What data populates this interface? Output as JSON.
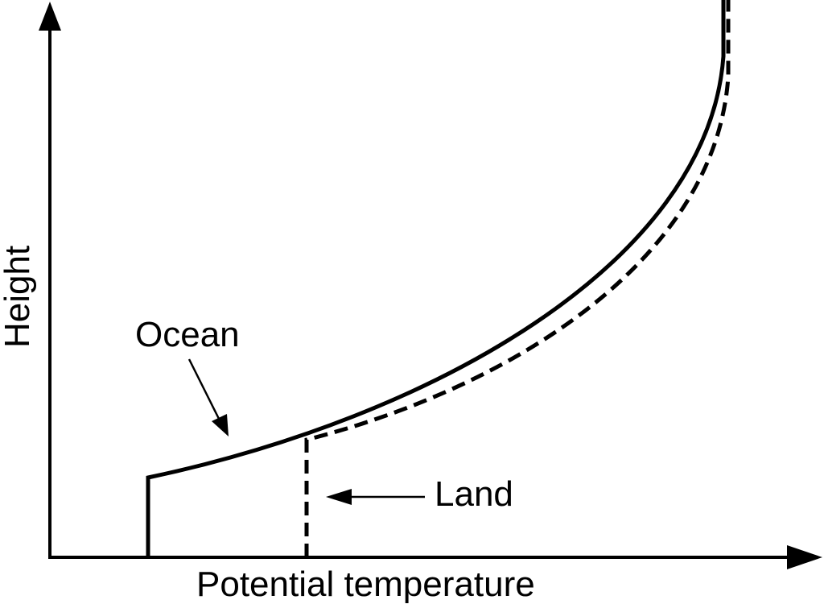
{
  "diagram": {
    "x_axis_label": "Potential temperature",
    "y_axis_label": "Height",
    "ocean_label": "Ocean",
    "land_label": "Land",
    "colors": {
      "line": "#000000",
      "background": "#ffffff"
    }
  }
}
